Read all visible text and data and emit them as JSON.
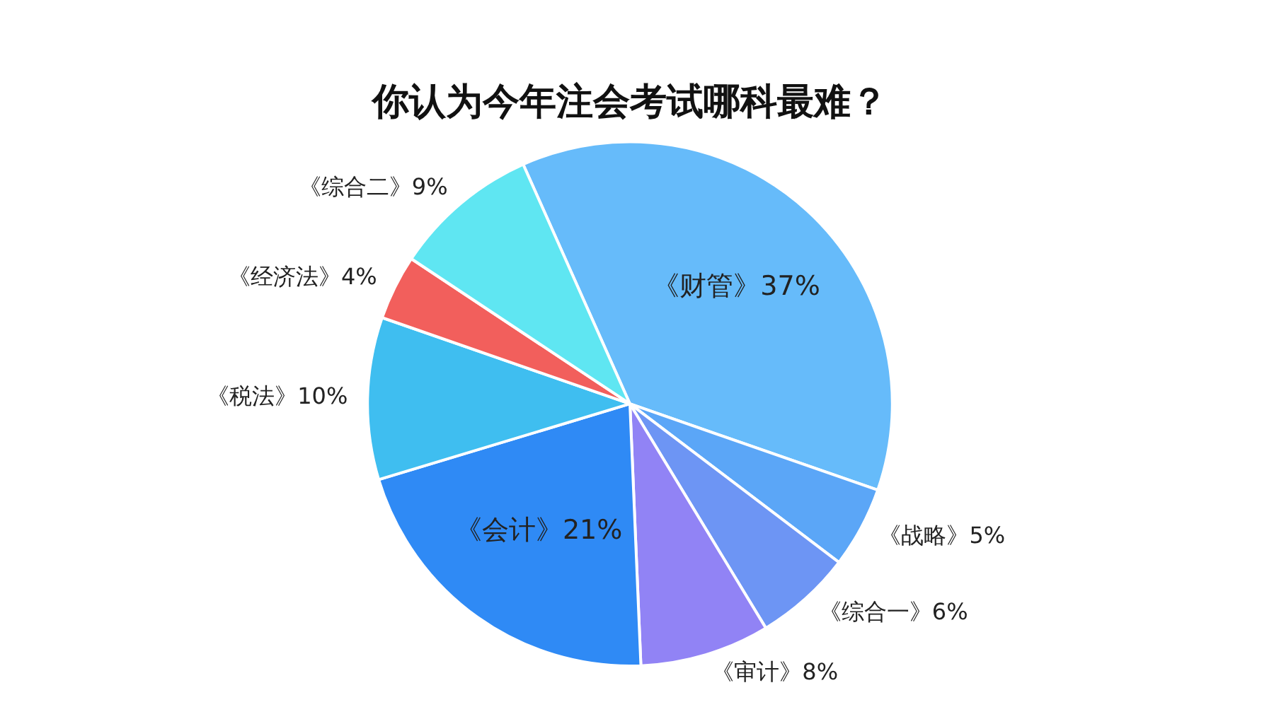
{
  "chart_data": {
    "type": "pie",
    "title": "你认为今年注会考试哪科最难？",
    "categories": [
      "《财管》",
      "《战略》",
      "《综合一》",
      "《审计》",
      "《会计》",
      "《税法》",
      "《经济法》",
      "《综合二》"
    ],
    "values": [
      37,
      5,
      6,
      8,
      21,
      10,
      4,
      9
    ],
    "value_labels": [
      "37%",
      "5%",
      "6%",
      "8%",
      "21%",
      "10%",
      "4%",
      "9%"
    ],
    "colors": [
      "#66bbfa",
      "#5ba6f7",
      "#6d95f4",
      "#9183f5",
      "#2f8af5",
      "#3fbef0",
      "#f25f5c",
      "#5fe6f2"
    ],
    "legend": false
  }
}
